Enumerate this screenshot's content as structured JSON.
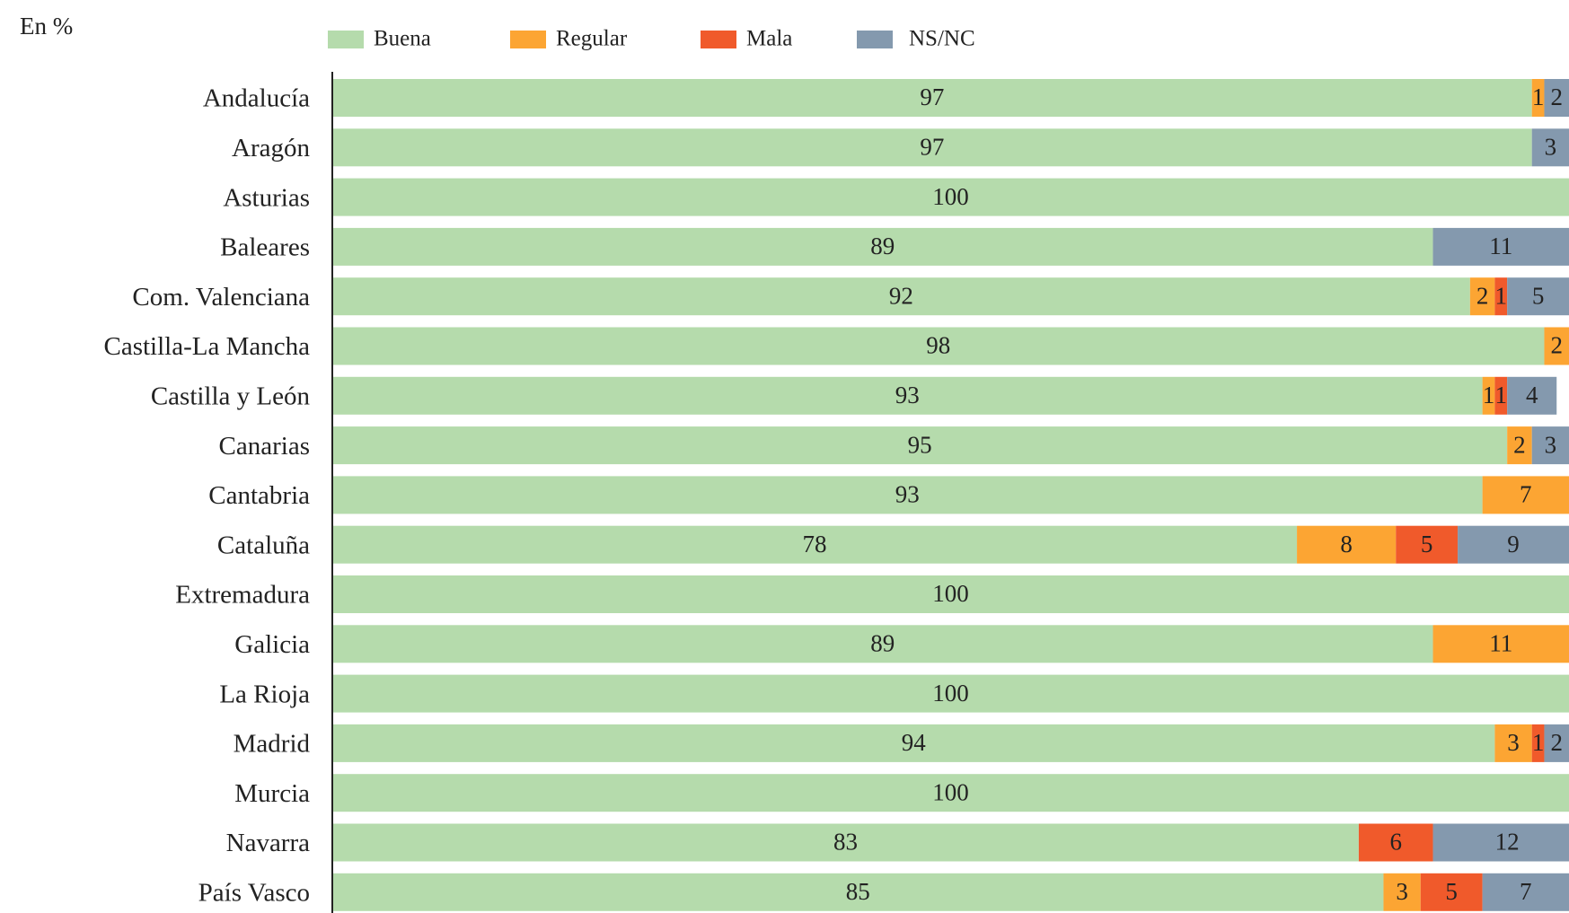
{
  "chart_data": {
    "type": "stacked_barh",
    "subtitle": "En %",
    "categories": [
      "Andalucía",
      "Aragón",
      "Asturias",
      "Baleares",
      "Com. Valenciana",
      "Castilla-La Mancha",
      "Castilla y León",
      "Canarias",
      "Cantabria",
      "Cataluña",
      "Extremadura",
      "Galicia",
      "La Rioja",
      "Madrid",
      "Murcia",
      "Navarra",
      "País Vasco"
    ],
    "series": [
      {
        "name": "Buena",
        "color": "#b5dbac",
        "label_color": "#222",
        "values": [
          97,
          97,
          100,
          89,
          92,
          98,
          93,
          95,
          93,
          78,
          100,
          89,
          100,
          94,
          100,
          83,
          85
        ]
      },
      {
        "name": "Regular",
        "color": "#fca533",
        "label_color": "#222",
        "values": [
          1,
          null,
          null,
          null,
          2,
          2,
          1,
          2,
          7,
          8,
          null,
          11,
          null,
          3,
          null,
          null,
          3
        ]
      },
      {
        "name": "Mala",
        "color": "#f05a2b",
        "label_color": "#fff",
        "values": [
          null,
          null,
          null,
          null,
          1,
          null,
          1,
          null,
          null,
          5,
          null,
          null,
          null,
          1,
          null,
          6,
          5
        ]
      },
      {
        "name": "NS/NC",
        "color": "#8499ae",
        "label_color": "#fff",
        "values": [
          2,
          3,
          null,
          11,
          5,
          null,
          4,
          3,
          null,
          9,
          null,
          null,
          null,
          2,
          null,
          12,
          7
        ]
      }
    ],
    "xlim": [
      0,
      100
    ],
    "legend": "top"
  }
}
